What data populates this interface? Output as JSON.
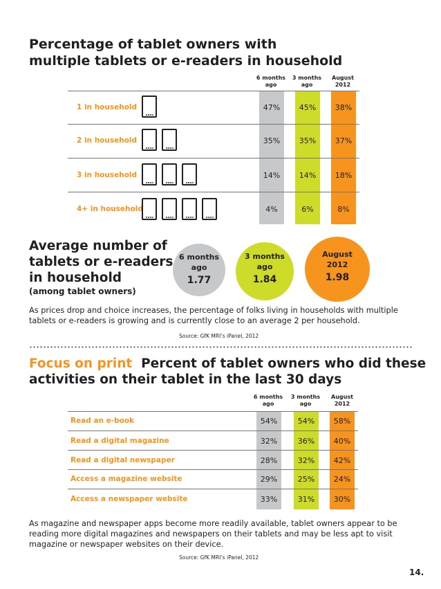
{
  "section1": {
    "title_line1": "Percentage of tablet owners with",
    "title_line2": "multiple tablets or e-readers in household",
    "columns": [
      {
        "line1": "6 months",
        "line2": "ago"
      },
      {
        "line1": "3 months",
        "line2": "ago"
      },
      {
        "line1": "August",
        "line2": "2012"
      }
    ],
    "rows": [
      {
        "label": "1 in household",
        "icons": 1,
        "values": [
          "47%",
          "45%",
          "38%"
        ]
      },
      {
        "label": "2 in household",
        "icons": 2,
        "values": [
          "35%",
          "35%",
          "37%"
        ]
      },
      {
        "label": "3 in household",
        "icons": 3,
        "values": [
          "14%",
          "14%",
          "18%"
        ]
      },
      {
        "label": "4+ in household",
        "icons": 4,
        "values": [
          "4%",
          "6%",
          "8%"
        ]
      }
    ]
  },
  "average": {
    "title_line1": "Average number of",
    "title_line2": "tablets or e-readers",
    "title_line3": "in household",
    "subtitle": "(among tablet owners)",
    "circles": [
      {
        "line1": "6 months",
        "line2": "ago",
        "value": "1.77",
        "color": "#c6c8ca"
      },
      {
        "line1": "3 months",
        "line2": "ago",
        "value": "1.84",
        "color": "#cddc29"
      },
      {
        "line1": "August",
        "line2": "2012",
        "value": "1.98",
        "color": "#f7941d"
      }
    ],
    "paragraph_line1": "As prices drop and choice increases, the percentage of folks living in households with multiple",
    "paragraph_line2": "tablets or e-readers is growing and is currently close to an average 2 per household.",
    "source": "Source: GfK MRI’s iPanel, 2012"
  },
  "section2": {
    "accent": "Focus on print",
    "title_rest": "Percent of tablet owners who did these",
    "title_line2": "activities on their tablet in the last 30 days",
    "columns": [
      {
        "line1": "6 months",
        "line2": "ago"
      },
      {
        "line1": "3 months",
        "line2": "ago"
      },
      {
        "line1": "August",
        "line2": "2012"
      }
    ],
    "rows": [
      {
        "label": "Read an e-book",
        "values": [
          "54%",
          "54%",
          "58%"
        ]
      },
      {
        "label": "Read a digital magazine",
        "values": [
          "32%",
          "36%",
          "40%"
        ]
      },
      {
        "label": "Read a digital newspaper",
        "values": [
          "28%",
          "32%",
          "42%"
        ]
      },
      {
        "label": "Access a magazine website",
        "values": [
          "29%",
          "25%",
          "24%"
        ]
      },
      {
        "label": "Access a newspaper website",
        "values": [
          "33%",
          "31%",
          "30%"
        ]
      }
    ],
    "paragraph_line1": "As magazine and newspaper apps become more readily available, tablet owners appear to be",
    "paragraph_line2": "reading more digital magazines and newspapers on their tablets and may be less apt to visit",
    "paragraph_line3": "magazine or newspaper websites on their device.",
    "source": "Source: GfK MRI’s iPanel, 2012"
  },
  "page_number": "14.",
  "colors": {
    "gray": "#c6c8ca",
    "lime": "#cddc29",
    "orange": "#f7941d"
  }
}
